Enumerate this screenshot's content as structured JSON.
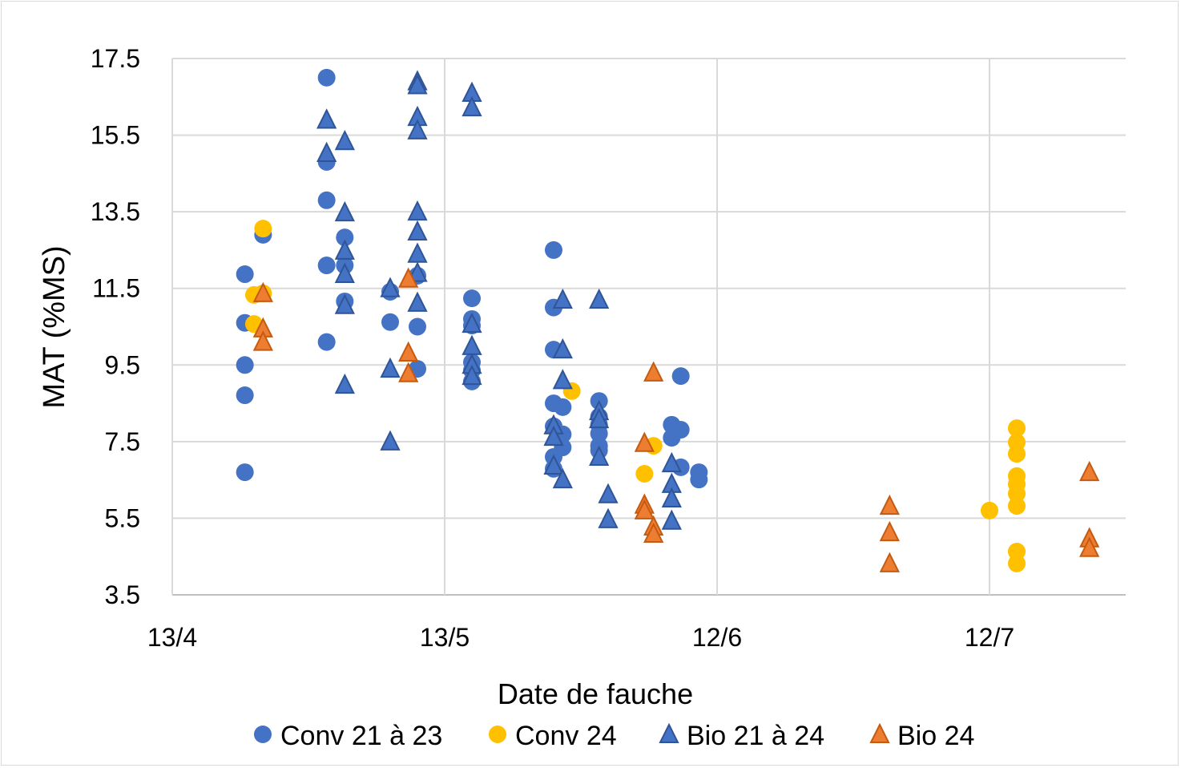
{
  "chart_data": {
    "type": "scatter",
    "title": "",
    "xlabel": "Date de fauche",
    "ylabel": "MAT (%MS)",
    "x_unit": "days since 13/4",
    "xlim": [
      0,
      105
    ],
    "ylim": [
      3.5,
      17.5
    ],
    "x_ticks": [
      {
        "value": 0,
        "label": "13/4"
      },
      {
        "value": 30,
        "label": "13/5"
      },
      {
        "value": 60,
        "label": "12/6"
      },
      {
        "value": 90,
        "label": "12/7"
      }
    ],
    "y_ticks": [
      {
        "value": 3.5,
        "label": "3.5"
      },
      {
        "value": 5.5,
        "label": "5.5"
      },
      {
        "value": 7.5,
        "label": "7.5"
      },
      {
        "value": 9.5,
        "label": "9.5"
      },
      {
        "value": 11.5,
        "label": "11.5"
      },
      {
        "value": 13.5,
        "label": "13.5"
      },
      {
        "value": 15.5,
        "label": "15.5"
      },
      {
        "value": 17.5,
        "label": "17.5"
      }
    ],
    "grid": true,
    "legend_position": "bottom",
    "series": [
      {
        "name": "Conv 21 à 23",
        "marker": "circle",
        "color": "#4472C4",
        "edge": "#4472C4",
        "points": [
          [
            8,
            11.87
          ],
          [
            8,
            10.6
          ],
          [
            8,
            9.5
          ],
          [
            8,
            8.71
          ],
          [
            8,
            6.7
          ],
          [
            10,
            12.9
          ],
          [
            17,
            17.0
          ],
          [
            17,
            14.8
          ],
          [
            17,
            13.8
          ],
          [
            17,
            12.1
          ],
          [
            17,
            10.1
          ],
          [
            19,
            12.83
          ],
          [
            19,
            12.1
          ],
          [
            19,
            11.16
          ],
          [
            24,
            11.41
          ],
          [
            24,
            10.62
          ],
          [
            27,
            10.5
          ],
          [
            27,
            9.4
          ],
          [
            27,
            11.83
          ],
          [
            33,
            11.24
          ],
          [
            33,
            10.7
          ],
          [
            33,
            10.53
          ],
          [
            33,
            9.57
          ],
          [
            33,
            9.36
          ],
          [
            33,
            9.07
          ],
          [
            42,
            12.5
          ],
          [
            42,
            11.0
          ],
          [
            42,
            9.9
          ],
          [
            42,
            8.5
          ],
          [
            42,
            7.9
          ],
          [
            42,
            7.1
          ],
          [
            42,
            6.79
          ],
          [
            43,
            8.4
          ],
          [
            43,
            7.69
          ],
          [
            43,
            7.35
          ],
          [
            47,
            8.56
          ],
          [
            47,
            8.15
          ],
          [
            47,
            7.94
          ],
          [
            47,
            7.71
          ],
          [
            47,
            7.39
          ],
          [
            47,
            7.27
          ],
          [
            55,
            7.94
          ],
          [
            55,
            7.6
          ],
          [
            56,
            9.21
          ],
          [
            56,
            7.81
          ],
          [
            56,
            6.83
          ],
          [
            58,
            6.7
          ],
          [
            58,
            6.51
          ]
        ]
      },
      {
        "name": "Conv 24",
        "marker": "circle",
        "color": "#FFC000",
        "edge": "#FFC000",
        "points": [
          [
            10,
            13.06
          ],
          [
            10,
            11.37
          ],
          [
            9,
            11.33
          ],
          [
            9,
            10.57
          ],
          [
            44,
            8.82
          ],
          [
            52,
            6.66
          ],
          [
            53,
            7.39
          ],
          [
            90,
            5.7
          ],
          [
            93,
            7.85
          ],
          [
            93,
            7.48
          ],
          [
            93,
            7.18
          ],
          [
            93,
            6.6
          ],
          [
            93,
            6.39
          ],
          [
            93,
            6.14
          ],
          [
            93,
            5.82
          ],
          [
            93,
            4.63
          ],
          [
            93,
            4.32
          ]
        ]
      },
      {
        "name": "Bio 21 à 24",
        "marker": "triangle",
        "color": "#4472C4",
        "edge": "#2F5597",
        "points": [
          [
            17,
            15.9
          ],
          [
            17,
            15.03
          ],
          [
            19,
            15.34
          ],
          [
            19,
            13.48
          ],
          [
            19,
            12.48
          ],
          [
            19,
            11.87
          ],
          [
            19,
            11.06
          ],
          [
            19,
            8.98
          ],
          [
            24,
            11.5
          ],
          [
            24,
            9.4
          ],
          [
            24,
            7.5
          ],
          [
            27,
            16.9
          ],
          [
            27,
            16.8
          ],
          [
            27,
            15.97
          ],
          [
            27,
            15.62
          ],
          [
            27,
            13.5
          ],
          [
            27,
            12.98
          ],
          [
            27,
            12.4
          ],
          [
            27,
            11.9
          ],
          [
            27,
            11.12
          ],
          [
            33,
            16.6
          ],
          [
            33,
            16.22
          ],
          [
            33,
            10.57
          ],
          [
            33,
            9.99
          ],
          [
            33,
            9.5
          ],
          [
            33,
            9.21
          ],
          [
            42,
            7.92
          ],
          [
            42,
            7.62
          ],
          [
            42,
            6.87
          ],
          [
            43,
            11.2
          ],
          [
            43,
            9.9
          ],
          [
            43,
            9.1
          ],
          [
            43,
            6.51
          ],
          [
            47,
            11.2
          ],
          [
            47,
            8.29
          ],
          [
            47,
            8.08
          ],
          [
            47,
            7.1
          ],
          [
            48,
            6.12
          ],
          [
            48,
            5.47
          ],
          [
            55,
            6.93
          ],
          [
            55,
            6.39
          ],
          [
            55,
            6.01
          ],
          [
            55,
            5.43
          ]
        ]
      },
      {
        "name": "Bio 24",
        "marker": "triangle",
        "color": "#ED7D31",
        "edge": "#C55A11",
        "points": [
          [
            10,
            11.37
          ],
          [
            10,
            10.45
          ],
          [
            10,
            10.1
          ],
          [
            26,
            11.75
          ],
          [
            26,
            9.82
          ],
          [
            26,
            9.28
          ],
          [
            52,
            7.46
          ],
          [
            52,
            5.85
          ],
          [
            52,
            5.7
          ],
          [
            53,
            9.3
          ],
          [
            53,
            5.28
          ],
          [
            53,
            5.09
          ],
          [
            79,
            5.82
          ],
          [
            79,
            5.13
          ],
          [
            79,
            4.32
          ],
          [
            101,
            6.7
          ],
          [
            101,
            4.97
          ],
          [
            101,
            4.72
          ]
        ]
      }
    ]
  }
}
